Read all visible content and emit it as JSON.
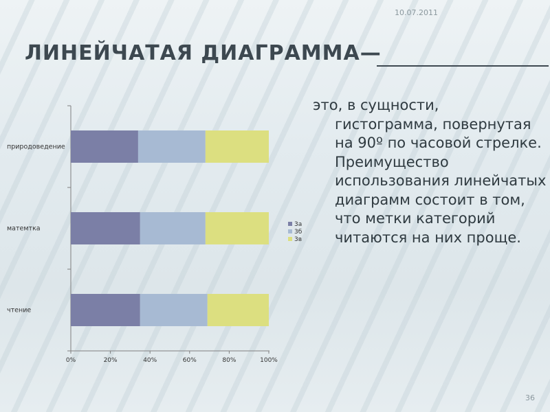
{
  "header": {
    "date": "10.07.2011"
  },
  "slide": {
    "title": "ЛИНЕЙЧАТАЯ ДИАГРАММА",
    "title_dash": "—",
    "body_first": "это, в сущности,",
    "body_rest": "гистограмма, повернутая на 90º по часовой стрелке. Преимущество использования линейчатых диаграмм состоит в том, что метки категорий читаются на них проще."
  },
  "footer": {
    "page_number": "36"
  },
  "chart_data": {
    "type": "bar",
    "orientation": "horizontal",
    "stacked": "percent",
    "categories": [
      "природоведение",
      "матемтка",
      "чтение"
    ],
    "series": [
      {
        "name": "3а",
        "color": "#7b7fa6",
        "values": [
          34,
          35,
          35
        ]
      },
      {
        "name": "3б",
        "color": "#a7bad3",
        "values": [
          34,
          33,
          34
        ]
      },
      {
        "name": "3в",
        "color": "#dcdf80",
        "values": [
          32,
          32,
          31
        ]
      }
    ],
    "x_ticks": [
      "0%",
      "20%",
      "40%",
      "60%",
      "80%",
      "100%"
    ],
    "xlim": [
      0,
      100
    ],
    "legend_position": "right",
    "grid": false
  }
}
